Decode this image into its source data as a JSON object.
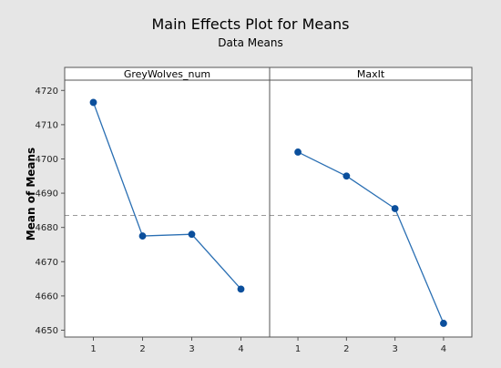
{
  "chart_data": {
    "type": "line",
    "title": "Main Effects Plot for Means",
    "subtitle": "Data Means",
    "ylabel": "Mean of Means",
    "ylim": [
      4648,
      4723
    ],
    "y_ticks": [
      4650,
      4660,
      4670,
      4680,
      4690,
      4700,
      4710,
      4720
    ],
    "categories": [
      "1",
      "2",
      "3",
      "4"
    ],
    "reference_line": 4683.5,
    "grid": false,
    "series": [
      {
        "name": "GreyWolves_num",
        "values": [
          4716.5,
          4677.5,
          4678.0,
          4662.0
        ]
      },
      {
        "name": "MaxIt",
        "values": [
          4702.0,
          4695.0,
          4685.5,
          4652.0
        ]
      }
    ],
    "colors": {
      "background": "#e6e6e6",
      "plot_area": "#ffffff",
      "line": "#2a6fb3",
      "marker": "#0b4f9c",
      "reference": "#9a9a9a",
      "frame": "#555555"
    }
  }
}
